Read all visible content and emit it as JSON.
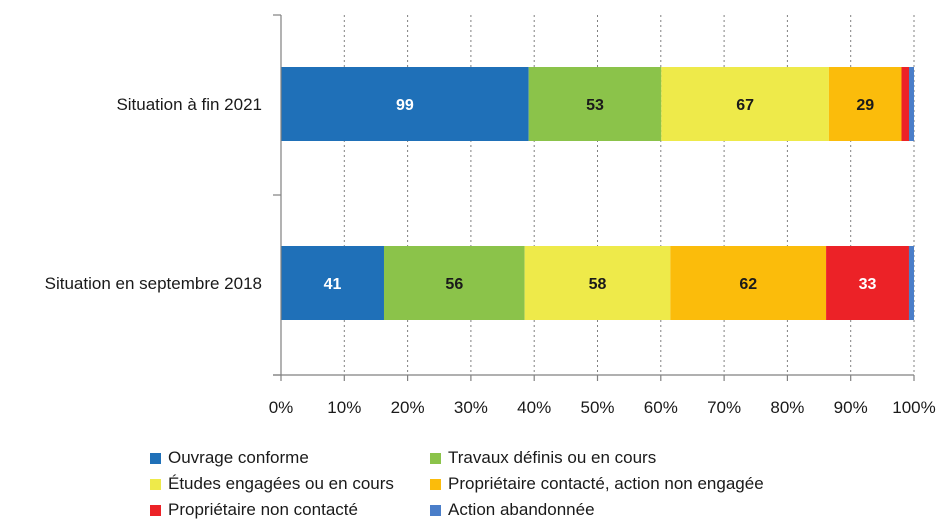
{
  "chart_data": {
    "type": "bar",
    "orientation": "horizontal",
    "stacked": "percent",
    "categories": [
      "Situation à fin 2021",
      "Situation en septembre 2018"
    ],
    "series": [
      {
        "name": "Ouvrage conforme",
        "color": "#1f70b8",
        "values": [
          99,
          41
        ],
        "label_color": "#ffffff"
      },
      {
        "name": "Travaux définis ou en cours",
        "color": "#8bc34a",
        "values": [
          53,
          56
        ],
        "label_color": "#1a1a1a"
      },
      {
        "name": "Études engagées ou en cours",
        "color": "#eeea4a",
        "values": [
          67,
          58
        ],
        "label_color": "#1a1a1a"
      },
      {
        "name": "Propriétaire contacté, action non engagée",
        "color": "#fbbc0b",
        "values": [
          29,
          62
        ],
        "label_color": "#1a1a1a"
      },
      {
        "name": "Propriétaire non contacté",
        "color": "#ec2227",
        "values": [
          3,
          33
        ],
        "label_color": "#ffffff"
      },
      {
        "name": "Action abandonnée",
        "color": "#4a7ec9",
        "values": [
          2,
          2
        ],
        "label_color": "#ffffff"
      }
    ],
    "x_ticks": [
      "0%",
      "10%",
      "20%",
      "30%",
      "40%",
      "50%",
      "60%",
      "70%",
      "80%",
      "90%",
      "100%"
    ],
    "xlim": [
      0,
      100
    ],
    "grid": "vertical dotted",
    "legend_position": "bottom"
  }
}
